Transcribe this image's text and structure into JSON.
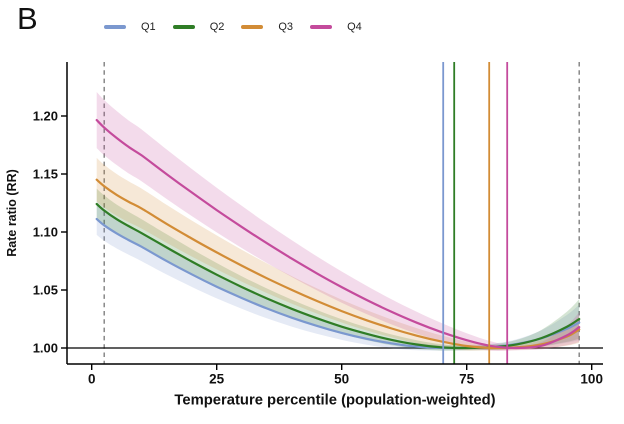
{
  "panel_label": "B",
  "chart_data": {
    "type": "line",
    "xlabel": "Temperature percentile (population-weighted)",
    "ylabel": "Rate ratio (RR)",
    "xticks": [
      0,
      25,
      50,
      75,
      100
    ],
    "ytick_labels": [
      "1.00",
      "1.05",
      "1.10",
      "1.15",
      "1.20"
    ],
    "ytick_values": [
      1.0,
      1.05,
      1.1,
      1.15,
      1.2
    ],
    "ylim": [
      0.986,
      1.247
    ],
    "xlim": [
      -5,
      102.3
    ],
    "reference_line_y": 1.0,
    "dashed_vlines_x": [
      2.5,
      97.5
    ],
    "legend_position": "top",
    "x": [
      1,
      2.5,
      5,
      7.5,
      10,
      15,
      20,
      25,
      30,
      35,
      40,
      45,
      50,
      55,
      60,
      65,
      70,
      75,
      80,
      85,
      90,
      95,
      97.5
    ],
    "series": [
      {
        "name": "Q1",
        "color": "#7b98cf",
        "min_vline_x": 70.3,
        "values": [
          1.1112,
          1.1058,
          1.0988,
          1.0928,
          1.0872,
          1.0749,
          1.0635,
          1.0528,
          1.0431,
          1.0341,
          1.0261,
          1.0191,
          1.013,
          1.0079,
          1.004,
          1.0012,
          1.0001,
          1.0001,
          1.001,
          1.0035,
          1.0084,
          1.0165,
          1.022
        ],
        "ci_halfwidth": {
          "floor": 0.002,
          "cold_coef": 0.035,
          "hot_coef": 0.6
        }
      },
      {
        "name": "Q2",
        "color": "#2f7d26",
        "min_vline_x": 72.5,
        "values": [
          1.1241,
          1.1185,
          1.111,
          1.1048,
          1.099,
          1.0866,
          1.0746,
          1.0632,
          1.0526,
          1.0428,
          1.0338,
          1.0257,
          1.0184,
          1.0122,
          1.007,
          1.003,
          1.0005,
          1.0,
          1.0007,
          1.0031,
          1.0086,
          1.0182,
          1.025
        ],
        "ci_halfwidth": {
          "floor": 0.002,
          "cold_coef": 0.032,
          "hot_coef": 0.6
        }
      },
      {
        "name": "Q3",
        "color": "#d28c36",
        "min_vline_x": 79.5,
        "values": [
          1.1451,
          1.1395,
          1.132,
          1.1258,
          1.1202,
          1.107,
          1.0944,
          1.0824,
          1.071,
          1.0602,
          1.0501,
          1.0406,
          1.0318,
          1.0239,
          1.0168,
          1.0106,
          1.0055,
          1.0017,
          1.0,
          1.0005,
          1.0032,
          1.0098,
          1.016
        ],
        "ci_halfwidth": {
          "floor": 0.002,
          "cold_coef": 0.044,
          "hot_coef": 0.6
        }
      },
      {
        "name": "Q4",
        "color": "#c44b9c",
        "min_vline_x": 83.1,
        "values": [
          1.1965,
          1.19,
          1.181,
          1.173,
          1.166,
          1.1498,
          1.1341,
          1.1189,
          1.1044,
          1.0904,
          1.0771,
          1.0644,
          1.0525,
          1.0414,
          1.0311,
          1.0218,
          1.0136,
          1.0067,
          1.0016,
          1.0,
          1.002,
          1.0108,
          1.018
        ],
        "ci_halfwidth": {
          "floor": 0.002,
          "cold_coef": 0.05,
          "hot_coef": 0.6
        }
      }
    ]
  }
}
